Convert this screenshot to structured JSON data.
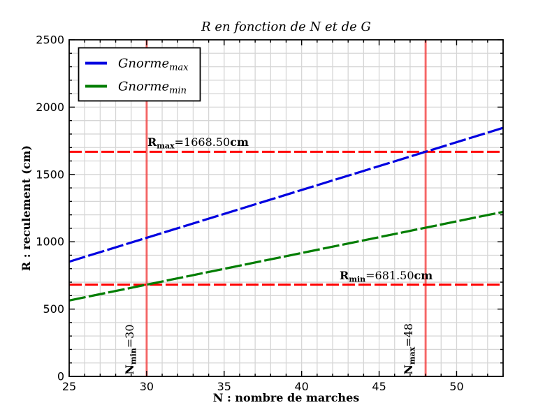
{
  "chart_data": {
    "type": "line",
    "title": "R en fonction de N et de G",
    "xlabel": "N : nombre de marches",
    "ylabel": "R : reculement (cm)",
    "xlim": [
      25,
      53
    ],
    "ylim": [
      0,
      2500
    ],
    "xticks": [
      25,
      30,
      35,
      40,
      45,
      50
    ],
    "yticks": [
      0,
      500,
      1000,
      1500,
      2000,
      2500
    ],
    "x_minor_step": 1,
    "y_minor_step": 100,
    "grid": true,
    "grid_color": "#d6d6d6",
    "frame_color": "#000000",
    "legend_position": "upper left",
    "series": [
      {
        "name": "gnorme-max",
        "label_main": "Gnorme",
        "label_sub": "max",
        "color": "#0000e0",
        "style": "dashed",
        "x": [
          25,
          53
        ],
        "y": [
          852,
          1846
        ]
      },
      {
        "name": "gnorme-min",
        "label_main": "Gnorme",
        "label_sub": "min",
        "color": "#007d00",
        "style": "dashed",
        "x": [
          25,
          53
        ],
        "y": [
          564,
          1222
        ]
      }
    ],
    "reference_lines": {
      "horizontal": [
        {
          "value": 1668.5,
          "color": "#ff0000",
          "style": "dashed",
          "annotation": {
            "pre": "R",
            "sub": "max",
            "eq": "=",
            "val": "1668.50",
            "unit": "cm",
            "at": {
              "n": 30.05,
              "r": 1712
            }
          }
        },
        {
          "value": 681.5,
          "color": "#ff0000",
          "style": "dashed",
          "annotation": {
            "pre": "R",
            "sub": "min",
            "eq": "=",
            "val": "681.50",
            "unit": "cm",
            "at": {
              "n": 42.45,
              "r": 721
            }
          }
        }
      ],
      "vertical": [
        {
          "value": 30,
          "color": "#ff0000",
          "opacity": 0.55,
          "annotation": {
            "pre": "N",
            "sub": "min",
            "eq": "=",
            "val": "30",
            "unit": "",
            "rotate": -90,
            "at": {
              "n": 29.15,
              "r": 12
            }
          }
        },
        {
          "value": 48,
          "color": "#ff0000",
          "opacity": 0.55,
          "annotation": {
            "pre": "N",
            "sub": "max",
            "eq": "=",
            "val": "48",
            "unit": "",
            "rotate": -90,
            "at": {
              "n": 47.14,
              "r": 12
            }
          }
        }
      ]
    }
  }
}
